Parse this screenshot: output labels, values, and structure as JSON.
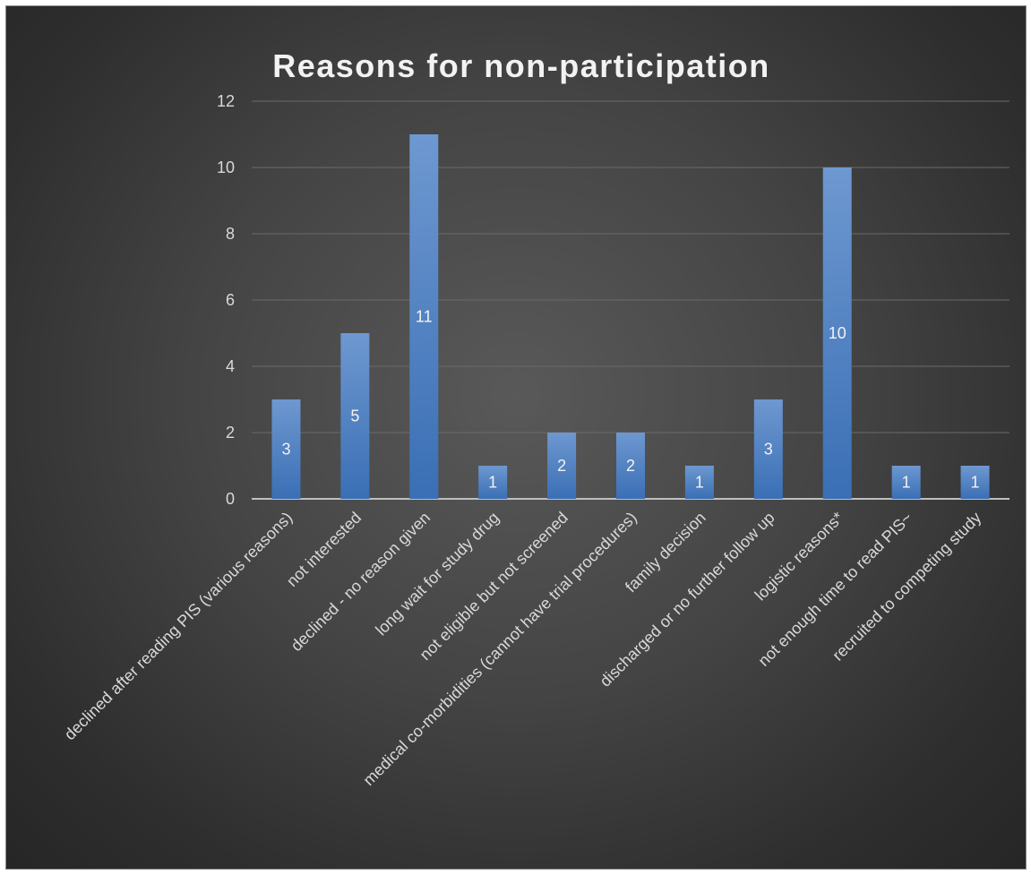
{
  "chart_data": {
    "type": "bar",
    "title": "Reasons for non-participation",
    "xlabel": "",
    "ylabel": "",
    "categories": [
      "declined after reading PIS (various reasons)",
      "not interested",
      "declined - no reason given",
      "long wait for study drug",
      "not eligible but not screened",
      "medical co-morbidities (cannot have trial procedures)",
      "family decision",
      "discharged or no further follow up",
      "logistic reasons*",
      "not enough time to read PIS~",
      "recruited to competing study"
    ],
    "values": [
      3,
      5,
      11,
      1,
      2,
      2,
      1,
      3,
      10,
      1,
      1
    ],
    "ylim": [
      0,
      12
    ],
    "yticks": [
      "0",
      "2",
      "4",
      "6",
      "8",
      "10",
      "12"
    ],
    "grid": true,
    "legend": "none",
    "colors": {
      "bar_top": "#6e98d0",
      "bar_bottom": "#3a6fb5",
      "background": "#3f3f3f"
    }
  }
}
